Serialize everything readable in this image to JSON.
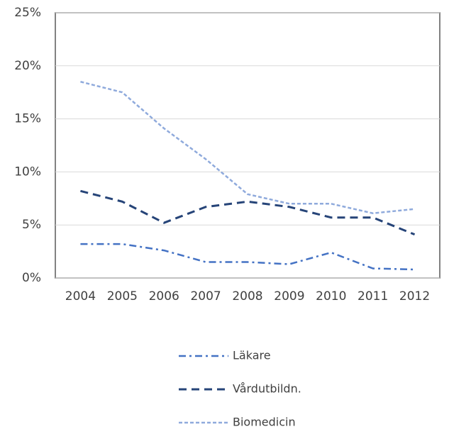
{
  "chart_data": {
    "type": "line",
    "categories": [
      "2004",
      "2005",
      "2006",
      "2007",
      "2008",
      "2009",
      "2010",
      "2011",
      "2012"
    ],
    "series": [
      {
        "name": "Läkare",
        "color": "#4472c4",
        "dash": "dash-dot",
        "values": [
          3.2,
          3.2,
          2.6,
          1.5,
          1.5,
          1.3,
          2.4,
          0.9,
          0.8
        ]
      },
      {
        "name": "Vårdutbildn.",
        "color": "#264478",
        "dash": "dash",
        "values": [
          8.2,
          7.2,
          5.2,
          6.7,
          7.2,
          6.7,
          5.7,
          5.7,
          4.1
        ]
      },
      {
        "name": "Biomedicin",
        "color": "#8faadc",
        "dash": "short-dash",
        "values": [
          18.5,
          17.5,
          14.1,
          11.2,
          7.9,
          7.0,
          7.0,
          6.1,
          6.5
        ]
      }
    ],
    "ylim": [
      0,
      25
    ],
    "yticks": [
      {
        "value": 0,
        "label": "0%"
      },
      {
        "value": 5,
        "label": "5%"
      },
      {
        "value": 10,
        "label": "10%"
      },
      {
        "value": 15,
        "label": "15%"
      },
      {
        "value": 20,
        "label": "20%"
      },
      {
        "value": 25,
        "label": "25%"
      }
    ],
    "grid": true,
    "legend": "bottom"
  }
}
